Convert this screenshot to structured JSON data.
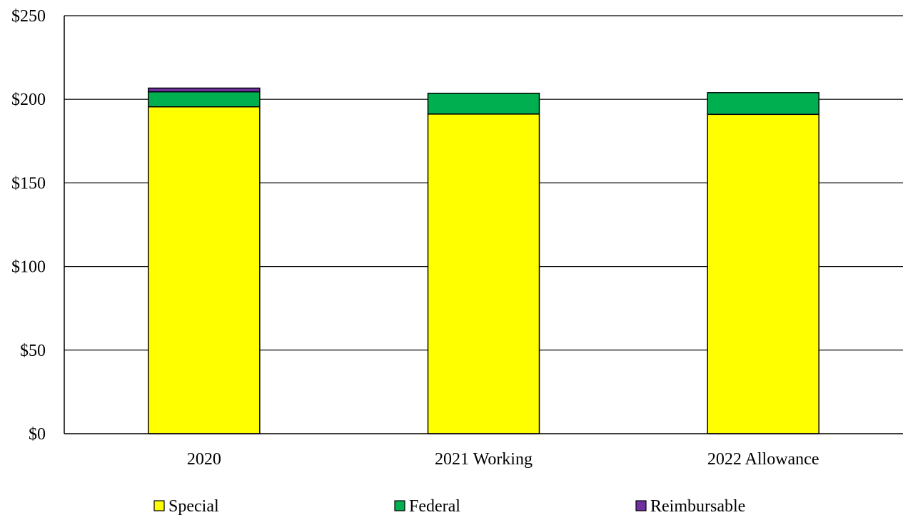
{
  "chart_data": {
    "type": "bar",
    "stacked": true,
    "title": "",
    "xlabel": "",
    "ylabel": "",
    "categories": [
      "2020",
      "2021 Working",
      "2022 Allowance"
    ],
    "series": [
      {
        "name": "Special",
        "color": "#FFFF00",
        "values": [
          195.5,
          191.2,
          191.0
        ]
      },
      {
        "name": "Federal",
        "color": "#00B050",
        "values": [
          9.0,
          12.4,
          13.0
        ]
      },
      {
        "name": "Reimbursable",
        "color": "#7030A0",
        "values": [
          2.2,
          0,
          0
        ]
      }
    ],
    "ylim": [
      0,
      250
    ],
    "yticks": [
      0,
      50,
      100,
      150,
      200,
      250
    ],
    "ytick_labels": [
      "$0",
      "$50",
      "$100",
      "$150",
      "$200",
      "$250"
    ],
    "grid": true,
    "legend_position": "bottom"
  }
}
